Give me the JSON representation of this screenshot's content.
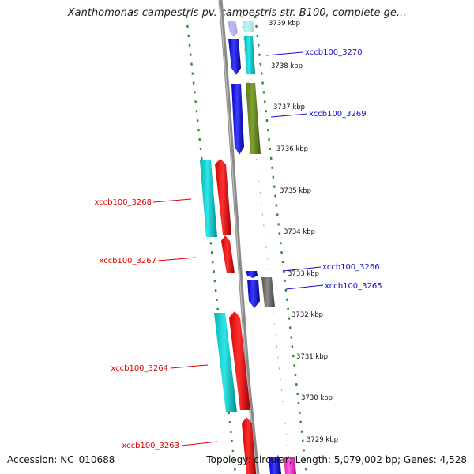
{
  "title": "Xanthomonas campestris pv. campestris str. B100, complete ge...",
  "footer": {
    "accession": "Accession: NC_010688",
    "topology": "Topology: circular; Length: 5,079,002 bp; Genes: 4,528"
  },
  "kbp_ticks": [
    "3739 kbp",
    "3738 kbp",
    "3737 kbp",
    "3736 kbp",
    "3735 kbp",
    "3734 kbp",
    "3733 kbp",
    "3732 kbp",
    "3731 kbp",
    "3730 kbp",
    "3729 kbp"
  ],
  "gene_labels": {
    "plus": [
      "xccb100_3270",
      "xccb100_3269",
      "xccb100_3266",
      "xccb100_3265"
    ],
    "minus": [
      "xccb100_3268",
      "xccb100_3267",
      "xccb100_3264",
      "xccb100_3263"
    ]
  },
  "colors": {
    "backbone": "#888888",
    "cds_blue": "#0a0ae6",
    "cds_red": "#ee0000",
    "cyan": "#00c8c8",
    "olive": "#6b8e23",
    "gray": "#6e6e6e",
    "magenta": "#ff33cc",
    "outline_green": "#2e8b2e",
    "label_blue": "#1010d0",
    "label_red": "#e00000"
  }
}
